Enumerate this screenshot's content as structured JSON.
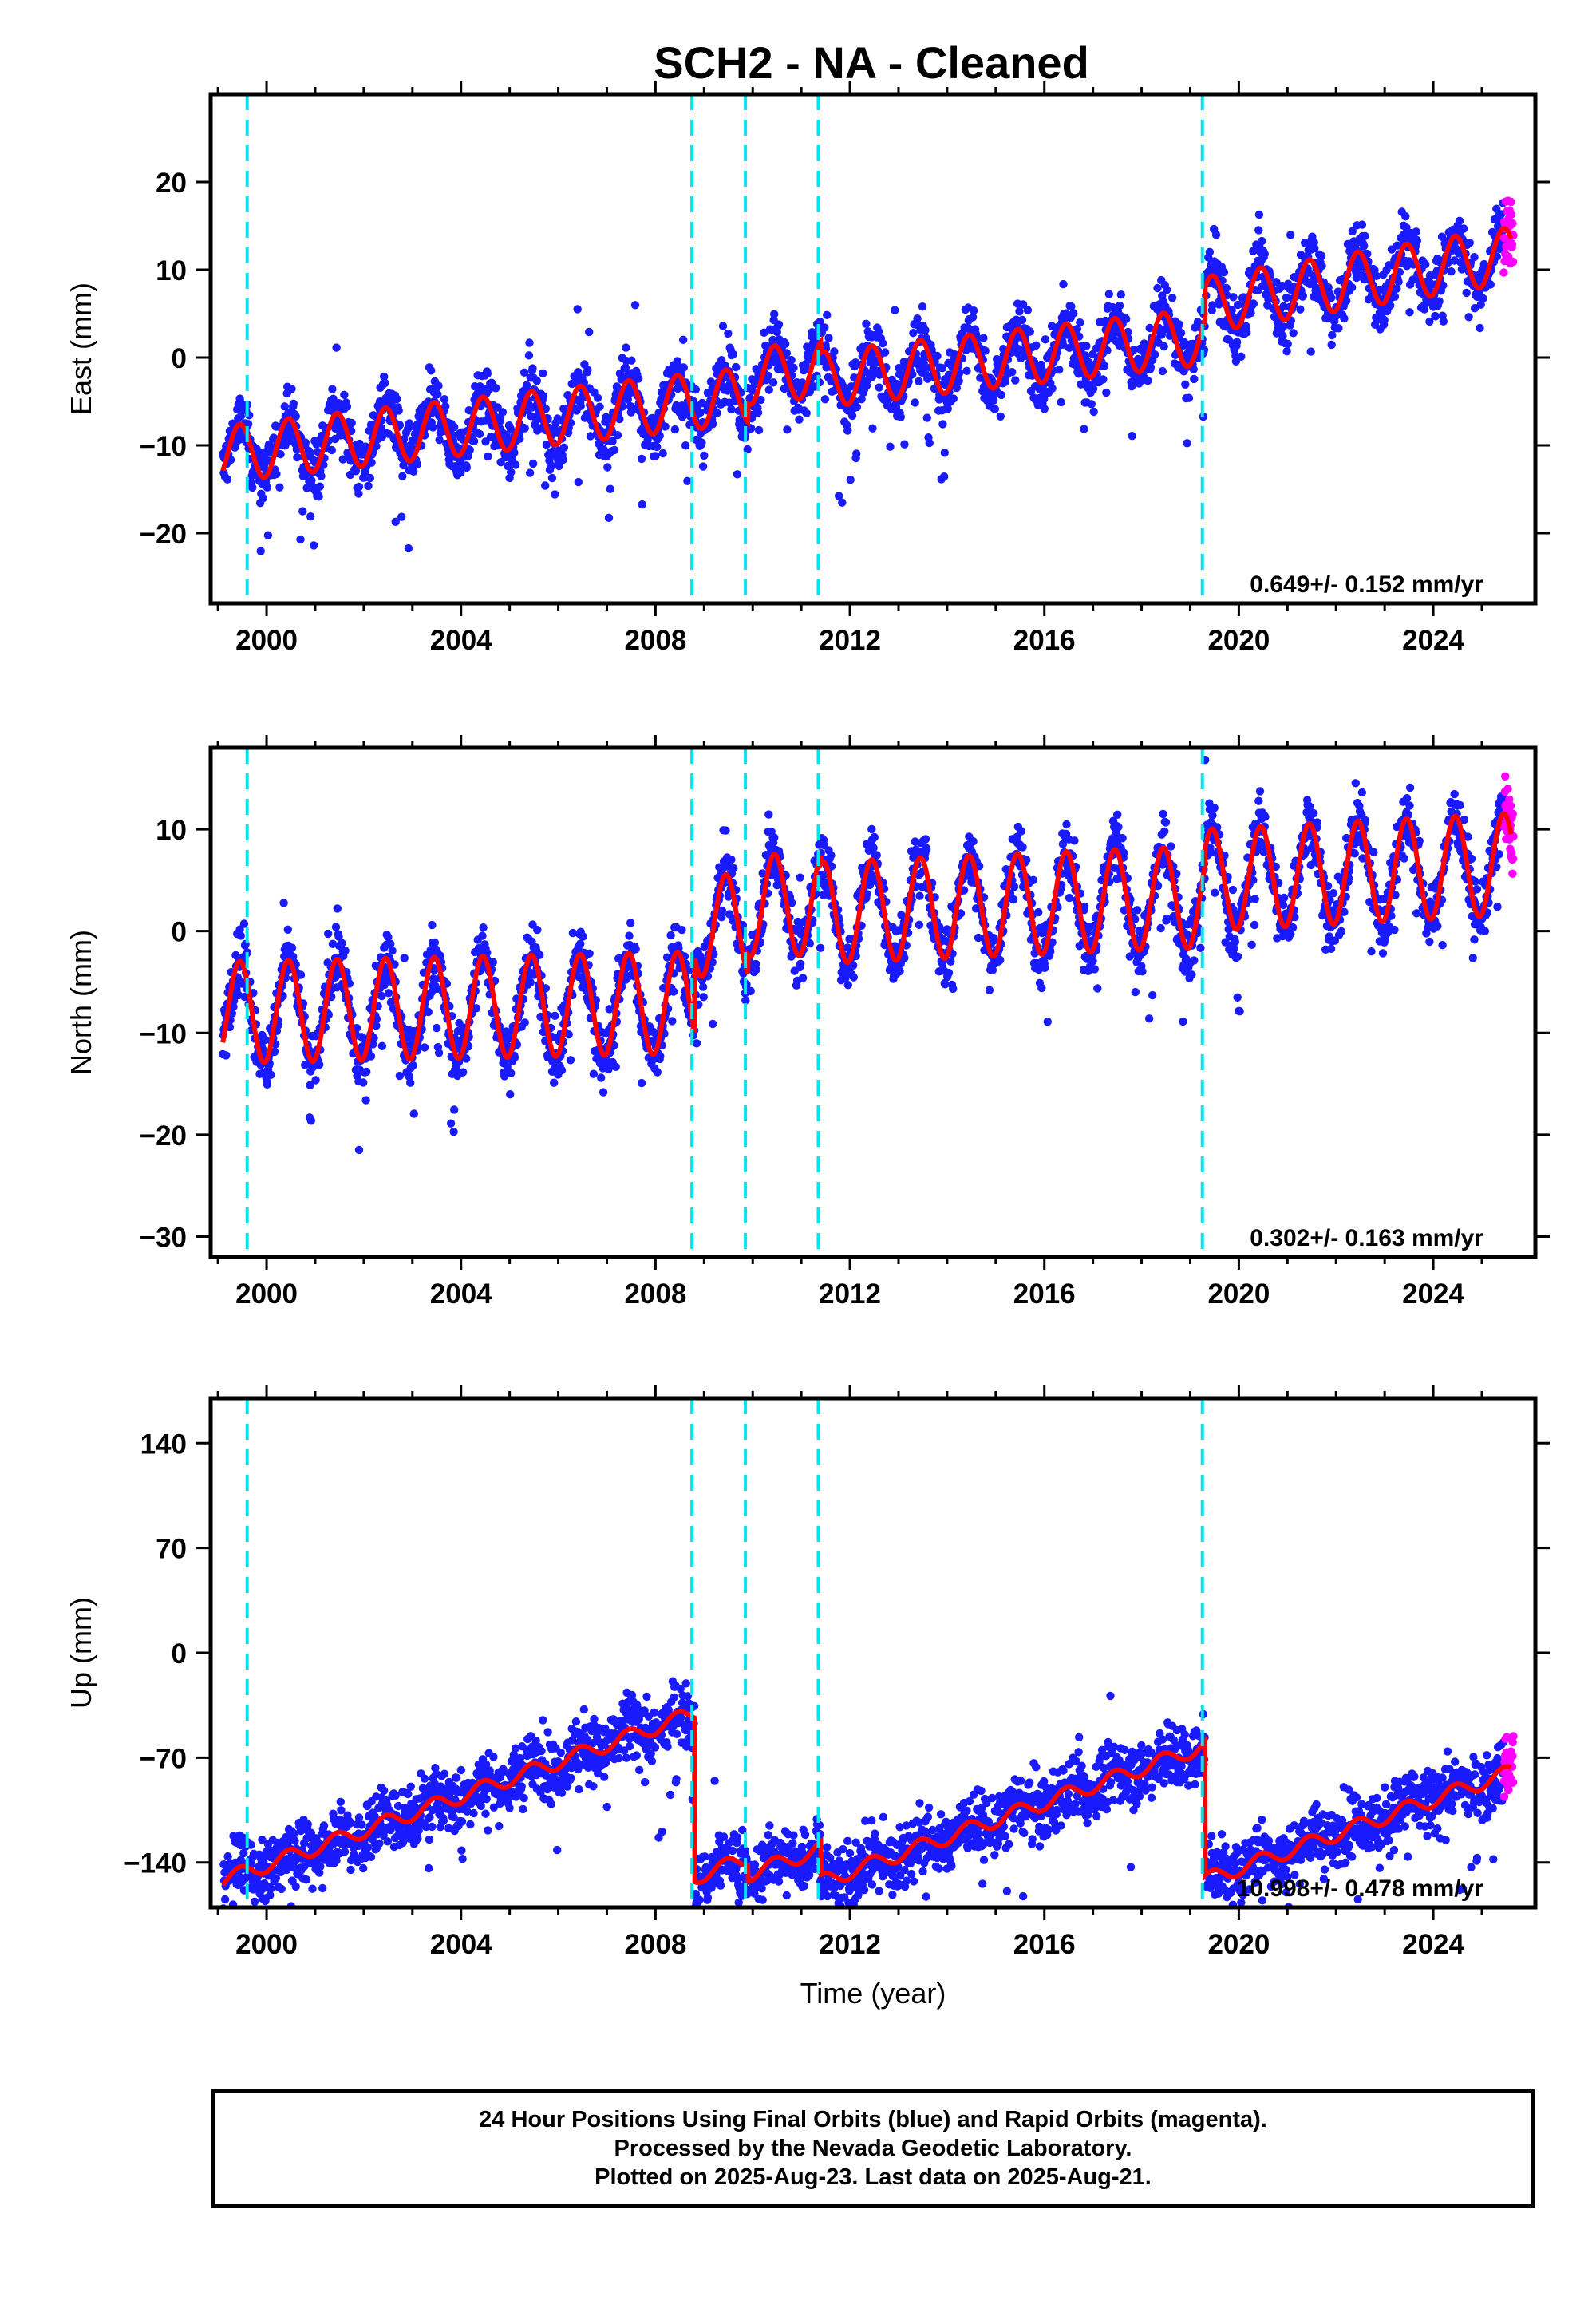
{
  "chart_data": [
    {
      "type": "scatter",
      "title": "SCH2  - NA - Cleaned",
      "ylabel": "East (mm)",
      "xlabel": "",
      "xlim": [
        1998.85,
        2026.1
      ],
      "ylim": [
        -28,
        30
      ],
      "yticks": [
        -20,
        -10,
        0,
        10,
        20
      ],
      "xticks": [
        2000,
        2004,
        2008,
        2012,
        2016,
        2020,
        2024
      ],
      "rate_text": "0.649+/- 0.152 mm/yr",
      "grid": false,
      "series": [
        {
          "color": "#1a1aff",
          "marker": "dot"
        },
        {
          "color": "#ff00ff",
          "marker": "dot"
        },
        {
          "color": "#ff0000",
          "marker": "line"
        }
      ],
      "model": {
        "start_year": 1999.1,
        "end_year": 2025.6,
        "segments": [
          {
            "from": 1999.1,
            "to": 2008.8,
            "offset": -11.0,
            "rate": 0.62,
            "amp": 3.2
          },
          {
            "from": 2008.8,
            "to": 2009.9,
            "offset": -5.0,
            "rate": 0.62,
            "amp": 3.2
          },
          {
            "from": 2009.9,
            "to": 2011.4,
            "offset": -2.2,
            "rate": 0.62,
            "amp": 3.2
          },
          {
            "from": 2011.4,
            "to": 2019.3,
            "offset": -2.5,
            "rate": 0.62,
            "amp": 3.2
          },
          {
            "from": 2019.3,
            "to": 2025.6,
            "offset": 6.0,
            "rate": 0.9,
            "amp": 3.2
          }
        ]
      },
      "breaks": [
        1999.6,
        2008.75,
        2009.85,
        2011.35,
        2019.25
      ]
    },
    {
      "type": "scatter",
      "title": "",
      "ylabel": "North (mm)",
      "xlabel": "",
      "xlim": [
        1998.85,
        2026.1
      ],
      "ylim": [
        -32,
        18
      ],
      "yticks": [
        -30,
        -20,
        -10,
        0,
        10
      ],
      "xticks": [
        2000,
        2004,
        2008,
        2012,
        2016,
        2020,
        2024
      ],
      "rate_text": "0.302+/- 0.163 mm/yr",
      "grid": false,
      "series": [
        {
          "color": "#1a1aff",
          "marker": "dot"
        },
        {
          "color": "#ff00ff",
          "marker": "dot"
        },
        {
          "color": "#ff0000",
          "marker": "line"
        }
      ],
      "model": {
        "start_year": 1999.1,
        "end_year": 2025.6,
        "segments": [
          {
            "from": 1999.1,
            "to": 2008.8,
            "offset": -8.0,
            "rate": 0.1,
            "amp": 5.0
          },
          {
            "from": 2008.8,
            "to": 2009.9,
            "offset": 0.5,
            "rate": 0.1,
            "amp": 5.0
          },
          {
            "from": 2009.9,
            "to": 2011.4,
            "offset": 2.5,
            "rate": 0.1,
            "amp": 5.0
          },
          {
            "from": 2011.4,
            "to": 2019.3,
            "offset": 1.8,
            "rate": 0.2,
            "amp": 5.0
          },
          {
            "from": 2019.3,
            "to": 2025.6,
            "offset": 5.0,
            "rate": 0.25,
            "amp": 5.0
          }
        ]
      },
      "breaks": [
        1999.6,
        2008.75,
        2009.85,
        2011.35,
        2019.25
      ]
    },
    {
      "type": "scatter",
      "title": "",
      "ylabel": "Up (mm)",
      "xlabel": "Time (year)",
      "xlim": [
        1998.85,
        2026.1
      ],
      "ylim": [
        -170,
        170
      ],
      "yticks": [
        -140,
        -70,
        0,
        70,
        140
      ],
      "xticks": [
        2000,
        2004,
        2008,
        2012,
        2016,
        2020,
        2024
      ],
      "rate_text": "10.998+/- 0.478 mm/yr",
      "grid": false,
      "series": [
        {
          "color": "#1a1aff",
          "marker": "dot"
        },
        {
          "color": "#ff00ff",
          "marker": "dot"
        },
        {
          "color": "#ff0000",
          "marker": "line"
        }
      ],
      "model": {
        "start_year": 1999.1,
        "end_year": 2025.6,
        "segments": [
          {
            "from": 1999.1,
            "to": 2008.8,
            "offset": -152.0,
            "rate": 11.5,
            "amp": 5.0
          },
          {
            "from": 2008.8,
            "to": 2009.9,
            "offset": -150.0,
            "rate": 11.5,
            "amp": 5.0
          },
          {
            "from": 2009.9,
            "to": 2011.4,
            "offset": -148.0,
            "rate": 11.5,
            "amp": 5.0
          },
          {
            "from": 2011.4,
            "to": 2019.3,
            "offset": -153.0,
            "rate": 11.5,
            "amp": 5.0
          },
          {
            "from": 2019.3,
            "to": 2025.6,
            "offset": -152.0,
            "rate": 11.5,
            "amp": 5.0
          }
        ]
      },
      "breaks": [
        1999.6,
        2008.75,
        2009.85,
        2011.35,
        2019.25
      ]
    }
  ],
  "caption": {
    "line1": "24 Hour Positions Using Final Orbits (blue) and Rapid Orbits (magenta).",
    "line2": "Processed by the Nevada Geodetic Laboratory.",
    "line3": "Plotted on 2025-Aug-23. Last data on 2025-Aug-21."
  }
}
